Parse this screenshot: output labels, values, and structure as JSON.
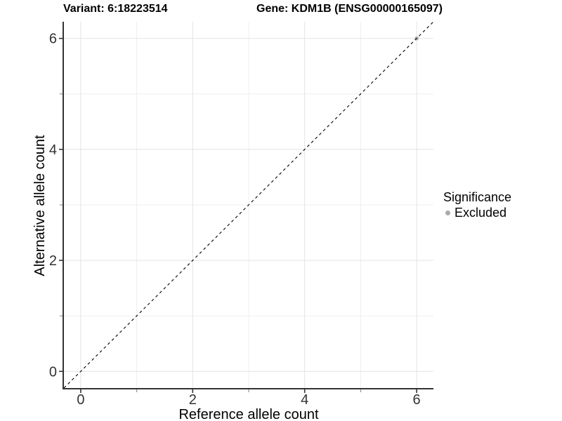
{
  "chart_data": {
    "type": "scatter",
    "title_left": "Variant: 6:18223514",
    "title_right": "Gene: KDM1B (ENSG00000165097)",
    "xlabel": "Reference allele count",
    "ylabel": "Alternative allele count",
    "xlim": [
      -0.3,
      6.3
    ],
    "ylim": [
      -0.3,
      6.3
    ],
    "x_major_ticks": [
      0,
      2,
      4,
      6
    ],
    "y_major_ticks": [
      0,
      2,
      4,
      6
    ],
    "x_minor_ticks": [
      1,
      3,
      5
    ],
    "y_minor_ticks": [
      1,
      3,
      5
    ],
    "grid": "on",
    "reference_line": {
      "type": "identity",
      "style": "dashed",
      "color": "#000000"
    },
    "series": [
      {
        "name": "Excluded",
        "color": "#aaaaaa",
        "points": [
          {
            "x": 6,
            "y": 6
          }
        ]
      }
    ],
    "legend": {
      "title": "Significance",
      "position": "right",
      "items": [
        {
          "label": "Excluded",
          "color": "#aaaaaa",
          "marker": "circle"
        }
      ]
    },
    "colors": {
      "grid_major": "#e3e3e3",
      "grid_minor": "#efefef",
      "axis_line": "#333333",
      "tick_mark": "#333333",
      "tick_mark_minor": "#999999",
      "tick_label": "#333333",
      "background": "#ffffff"
    }
  }
}
